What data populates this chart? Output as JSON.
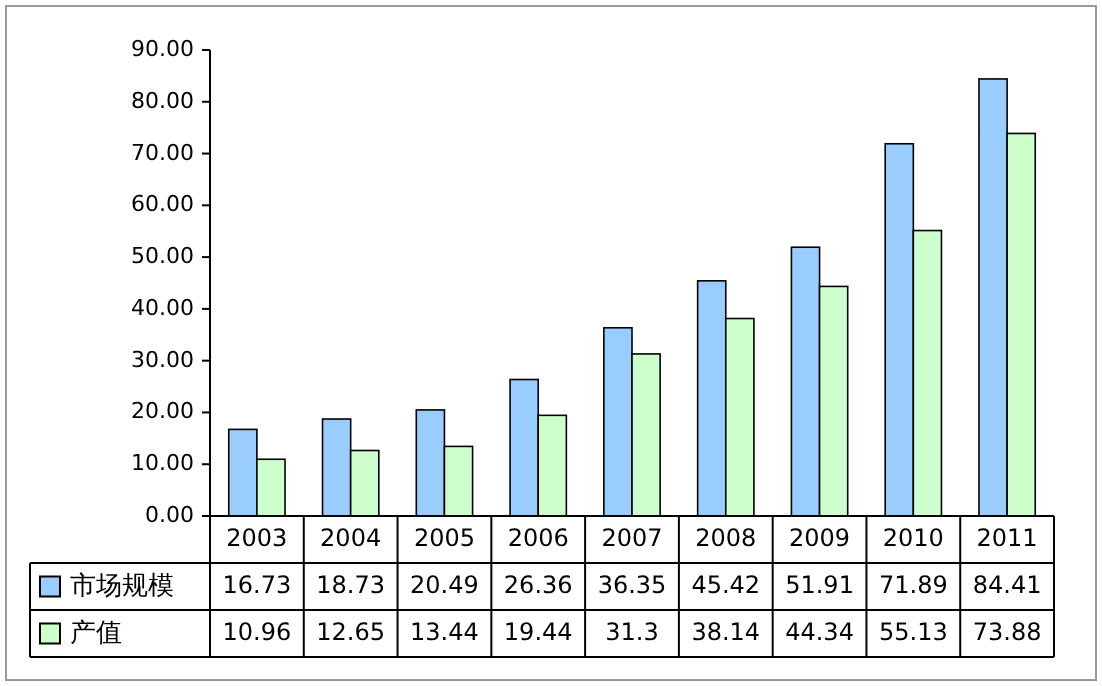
{
  "chart_data": {
    "type": "bar",
    "categories": [
      "2003",
      "2004",
      "2005",
      "2006",
      "2007",
      "2008",
      "2009",
      "2010",
      "2011"
    ],
    "series": [
      {
        "name": "市场规模",
        "color": "#99ccff",
        "values": [
          16.73,
          18.73,
          20.49,
          26.36,
          36.35,
          45.42,
          51.91,
          71.89,
          84.41
        ]
      },
      {
        "name": "产值",
        "color": "#ccffcc",
        "values": [
          10.96,
          12.65,
          13.44,
          19.44,
          31.3,
          38.14,
          44.34,
          55.13,
          73.88
        ]
      }
    ],
    "ylim": [
      0,
      90
    ],
    "yticks": [
      {
        "value": 0,
        "label": "0.00"
      },
      {
        "value": 10,
        "label": "10.00"
      },
      {
        "value": 20,
        "label": "20.00"
      },
      {
        "value": 30,
        "label": "30.00"
      },
      {
        "value": 40,
        "label": "40.00"
      },
      {
        "value": 50,
        "label": "50.00"
      },
      {
        "value": 60,
        "label": "60.00"
      },
      {
        "value": 70,
        "label": "70.00"
      },
      {
        "value": 80,
        "label": "80.00"
      },
      {
        "value": 90,
        "label": "90.00"
      }
    ],
    "data_labels": true,
    "legend": "bottom",
    "grid": false
  }
}
